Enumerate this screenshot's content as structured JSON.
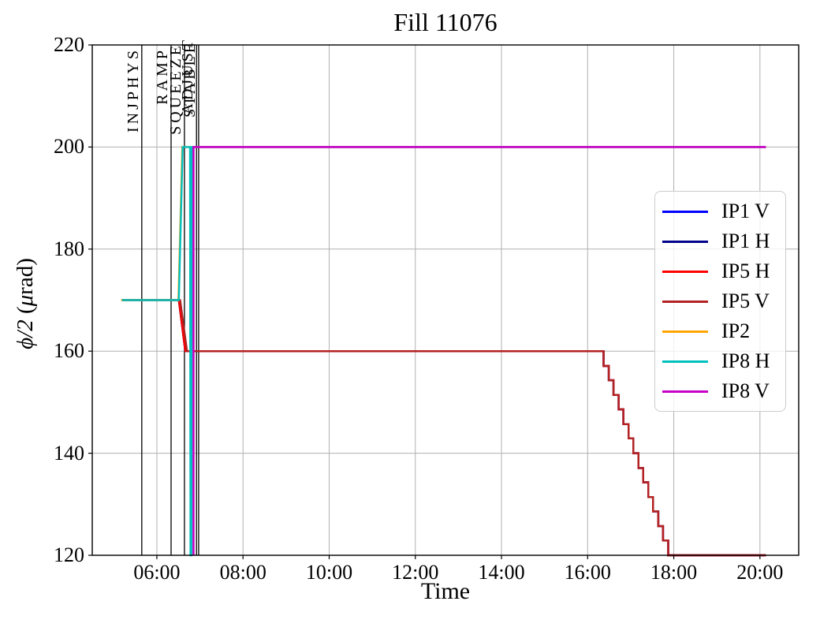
{
  "title": "Fill 11076",
  "chart_data": {
    "type": "line",
    "title": "Fill 11076",
    "xlabel": "Time",
    "ylabel": "ϕ/2 (μrad)",
    "ylabel_math": "ϕ/2",
    "ylabel_open": " (",
    "ylabel_mu": "μ",
    "ylabel_close": "rad)",
    "grid": true,
    "x_range_hours": [
      4.5,
      20.9
    ],
    "ylim": [
      120,
      220
    ],
    "x_ticks_hours": [
      6,
      8,
      10,
      12,
      14,
      16,
      18,
      20
    ],
    "x_ticklabels": [
      "06:00",
      "08:00",
      "10:00",
      "12:00",
      "14:00",
      "16:00",
      "18:00",
      "20:00"
    ],
    "y_ticks": [
      120,
      140,
      160,
      180,
      200,
      220
    ],
    "y_ticklabels": [
      "120",
      "140",
      "160",
      "180",
      "200",
      "220"
    ],
    "beam_modes": [
      {
        "label": "INJPHYS",
        "time_hours": 5.65
      },
      {
        "label": "RAMP",
        "time_hours": 6.33
      },
      {
        "label": "SQUEEZE",
        "time_hours": 6.64
      },
      {
        "label": "ADJUST",
        "time_hours": 6.92
      },
      {
        "label": "STABLE",
        "time_hours": 6.97
      }
    ],
    "series": [
      {
        "name": "IP1 V",
        "color": "#0000ff",
        "width": 2.4,
        "points": [
          [
            5.19,
            170
          ],
          [
            6.51,
            170
          ],
          [
            6.66,
            160
          ],
          [
            16.37,
            160
          ],
          [
            16.37,
            157.1
          ],
          [
            16.49,
            157.1
          ],
          [
            16.49,
            154.3
          ],
          [
            16.6,
            154.3
          ],
          [
            16.6,
            151.4
          ],
          [
            16.72,
            151.4
          ],
          [
            16.72,
            148.6
          ],
          [
            16.83,
            148.6
          ],
          [
            16.83,
            145.7
          ],
          [
            16.95,
            145.7
          ],
          [
            16.95,
            142.9
          ],
          [
            17.06,
            142.9
          ],
          [
            17.06,
            140
          ],
          [
            17.18,
            140
          ],
          [
            17.18,
            137.1
          ],
          [
            17.29,
            137.1
          ],
          [
            17.29,
            134.3
          ],
          [
            17.41,
            134.3
          ],
          [
            17.41,
            131.4
          ],
          [
            17.52,
            131.4
          ],
          [
            17.52,
            128.6
          ],
          [
            17.64,
            128.6
          ],
          [
            17.64,
            125.7
          ],
          [
            17.75,
            125.7
          ],
          [
            17.75,
            122.9
          ],
          [
            17.87,
            122.9
          ],
          [
            17.87,
            120
          ],
          [
            20.14,
            120
          ]
        ]
      },
      {
        "name": "IP1 H",
        "color": "#00008b",
        "width": 2.4,
        "points": [
          [
            5.19,
            170
          ],
          [
            6.51,
            170
          ],
          [
            6.66,
            160
          ],
          [
            16.37,
            160
          ],
          [
            16.37,
            157.1
          ],
          [
            16.49,
            157.1
          ],
          [
            16.49,
            154.3
          ],
          [
            16.6,
            154.3
          ],
          [
            16.6,
            151.4
          ],
          [
            16.72,
            151.4
          ],
          [
            16.72,
            148.6
          ],
          [
            16.83,
            148.6
          ],
          [
            16.83,
            145.7
          ],
          [
            16.95,
            145.7
          ],
          [
            16.95,
            142.9
          ],
          [
            17.06,
            142.9
          ],
          [
            17.06,
            140
          ],
          [
            17.18,
            140
          ],
          [
            17.18,
            137.1
          ],
          [
            17.29,
            137.1
          ],
          [
            17.29,
            134.3
          ],
          [
            17.41,
            134.3
          ],
          [
            17.41,
            131.4
          ],
          [
            17.52,
            131.4
          ],
          [
            17.52,
            128.6
          ],
          [
            17.64,
            128.6
          ],
          [
            17.64,
            125.7
          ],
          [
            17.75,
            125.7
          ],
          [
            17.75,
            122.9
          ],
          [
            17.87,
            122.9
          ],
          [
            17.87,
            120
          ],
          [
            20.14,
            120
          ]
        ]
      },
      {
        "name": "IP5 H",
        "color": "#ff0000",
        "width": 2.4,
        "points": [
          [
            5.19,
            170
          ],
          [
            6.51,
            170
          ],
          [
            6.66,
            160
          ],
          [
            16.37,
            160
          ],
          [
            16.37,
            157.1
          ],
          [
            16.49,
            157.1
          ],
          [
            16.49,
            154.3
          ],
          [
            16.6,
            154.3
          ],
          [
            16.6,
            151.4
          ],
          [
            16.72,
            151.4
          ],
          [
            16.72,
            148.6
          ],
          [
            16.83,
            148.6
          ],
          [
            16.83,
            145.7
          ],
          [
            16.95,
            145.7
          ],
          [
            16.95,
            142.9
          ],
          [
            17.06,
            142.9
          ],
          [
            17.06,
            140
          ],
          [
            17.18,
            140
          ],
          [
            17.18,
            137.1
          ],
          [
            17.29,
            137.1
          ],
          [
            17.29,
            134.3
          ],
          [
            17.41,
            134.3
          ],
          [
            17.41,
            131.4
          ],
          [
            17.52,
            131.4
          ],
          [
            17.52,
            128.6
          ],
          [
            17.64,
            128.6
          ],
          [
            17.64,
            125.7
          ],
          [
            17.75,
            125.7
          ],
          [
            17.75,
            122.9
          ],
          [
            17.87,
            122.9
          ],
          [
            17.87,
            120
          ],
          [
            20.14,
            120
          ]
        ]
      },
      {
        "name": "IP5 V",
        "color": "#b22222",
        "width": 2.4,
        "points": [
          [
            5.19,
            170
          ],
          [
            6.54,
            170
          ],
          [
            6.7,
            160
          ],
          [
            16.37,
            160
          ],
          [
            16.37,
            157.1
          ],
          [
            16.49,
            157.1
          ],
          [
            16.49,
            154.3
          ],
          [
            16.6,
            154.3
          ],
          [
            16.6,
            151.4
          ],
          [
            16.72,
            151.4
          ],
          [
            16.72,
            148.6
          ],
          [
            16.83,
            148.6
          ],
          [
            16.83,
            145.7
          ],
          [
            16.95,
            145.7
          ],
          [
            16.95,
            142.9
          ],
          [
            17.06,
            142.9
          ],
          [
            17.06,
            140
          ],
          [
            17.18,
            140
          ],
          [
            17.18,
            137.1
          ],
          [
            17.29,
            137.1
          ],
          [
            17.29,
            134.3
          ],
          [
            17.41,
            134.3
          ],
          [
            17.41,
            131.4
          ],
          [
            17.52,
            131.4
          ],
          [
            17.52,
            128.6
          ],
          [
            17.64,
            128.6
          ],
          [
            17.64,
            125.7
          ],
          [
            17.75,
            125.7
          ],
          [
            17.75,
            122.9
          ],
          [
            17.87,
            122.9
          ],
          [
            17.87,
            120
          ],
          [
            20.14,
            120
          ]
        ]
      },
      {
        "name": "IP2",
        "color": "#ffa500",
        "width": 2.4,
        "points": [
          [
            5.17,
            170
          ],
          [
            6.5,
            170
          ],
          [
            6.59,
            200
          ],
          [
            20.14,
            200
          ]
        ]
      },
      {
        "name": "IP8 H",
        "color": "#00bfbf",
        "width": 2.4,
        "points": [
          [
            5.19,
            170
          ],
          [
            6.51,
            170
          ],
          [
            6.6,
            200
          ],
          [
            6.77,
            200
          ],
          [
            6.78,
            120
          ],
          [
            6.8,
            120
          ],
          [
            6.81,
            200
          ],
          [
            20.14,
            200
          ]
        ]
      },
      {
        "name": "IP8 V",
        "color": "#c800c8",
        "width": 2.6,
        "points": [
          [
            6.85,
            120
          ],
          [
            6.85,
            200
          ],
          [
            20.14,
            200
          ]
        ]
      }
    ]
  },
  "legend": {
    "items": [
      {
        "label": "IP1 V",
        "color": "#0000ff"
      },
      {
        "label": "IP1 H",
        "color": "#00008b"
      },
      {
        "label": "IP5 H",
        "color": "#ff0000"
      },
      {
        "label": "IP5 V",
        "color": "#b22222"
      },
      {
        "label": "IP2",
        "color": "#ffa500"
      },
      {
        "label": "IP8 H",
        "color": "#00bfbf"
      },
      {
        "label": "IP8 V",
        "color": "#c800c8"
      }
    ]
  }
}
